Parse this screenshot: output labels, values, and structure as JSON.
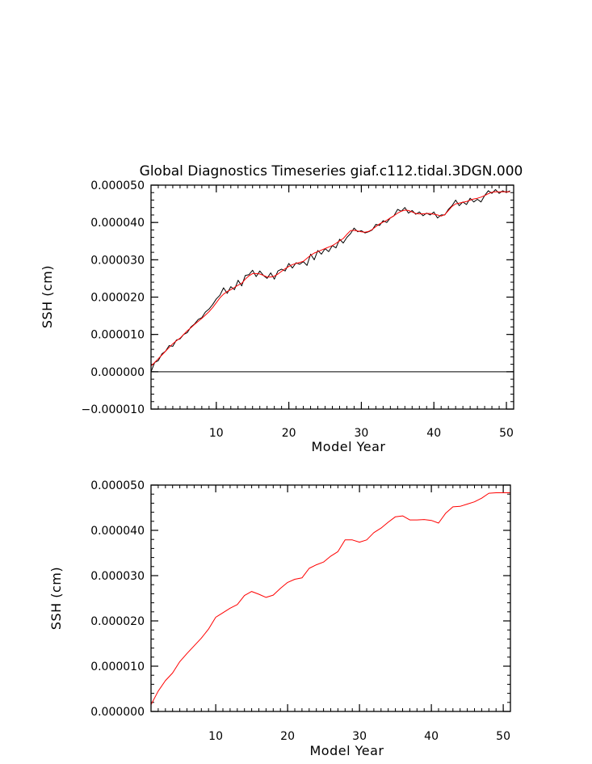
{
  "figure_title": "Global Diagnostics Timeseries giaf.c112.tidal.3DGN.000",
  "chart_data": [
    {
      "type": "line",
      "title": "Global Diagnostics Timeseries giaf.c112.tidal.3DGN.000",
      "xlabel": "Model Year",
      "ylabel": "SSH (cm)",
      "xlim": [
        1,
        51
      ],
      "ylim": [
        -1e-05,
        5e-05
      ],
      "x_ticks": [
        10,
        20,
        30,
        40,
        50
      ],
      "x_tick_labels": [
        "10",
        "20",
        "30",
        "40",
        "50"
      ],
      "y_ticks": [
        -1e-05,
        0,
        1e-05,
        2e-05,
        3e-05,
        4e-05,
        5e-05
      ],
      "y_tick_labels": [
        "−0.000010",
        "0.000000",
        "0.000010",
        "0.000020",
        "0.000030",
        "0.000040",
        "0.000050"
      ],
      "zero_line": true,
      "series": [
        {
          "color": "#000000",
          "x": [
            1.0,
            1.5,
            2.0,
            2.5,
            3.0,
            3.5,
            4.0,
            4.5,
            5.0,
            5.5,
            6.0,
            6.5,
            7.0,
            7.5,
            8.0,
            8.5,
            9.0,
            9.5,
            10.0,
            10.5,
            11.0,
            11.5,
            12.0,
            12.5,
            13.0,
            13.5,
            14.0,
            14.5,
            15.0,
            15.5,
            16.0,
            16.5,
            17.0,
            17.5,
            18.0,
            18.5,
            19.0,
            19.5,
            20.0,
            20.5,
            21.0,
            21.5,
            22.0,
            22.5,
            23.0,
            23.5,
            24.0,
            24.5,
            25.0,
            25.5,
            26.0,
            26.5,
            27.0,
            27.5,
            28.0,
            28.5,
            29.0,
            29.5,
            30.0,
            30.5,
            31.0,
            31.5,
            32.0,
            32.5,
            33.0,
            33.5,
            34.0,
            34.5,
            35.0,
            35.5,
            36.0,
            36.5,
            37.0,
            37.5,
            38.0,
            38.5,
            39.0,
            39.5,
            40.0,
            40.5,
            41.0,
            41.5,
            42.0,
            42.5,
            43.0,
            43.5,
            44.0,
            44.5,
            45.0,
            45.5,
            46.0,
            46.5,
            47.0,
            47.5,
            48.0,
            48.5,
            49.0,
            49.5,
            50.0,
            50.5
          ],
          "values": [
            0.0,
            2.5e-06,
            3e-06,
            4.8e-06,
            5.5e-06,
            7e-06,
            6.8e-06,
            8.5e-06,
            8.8e-06,
            1e-05,
            1.05e-05,
            1.2e-05,
            1.28e-05,
            1.4e-05,
            1.45e-05,
            1.6e-05,
            1.68e-05,
            1.8e-05,
            1.95e-05,
            2.05e-05,
            2.25e-05,
            2.1e-05,
            2.28e-05,
            2.2e-05,
            2.45e-05,
            2.3e-05,
            2.58e-05,
            2.6e-05,
            2.72e-05,
            2.55e-05,
            2.7e-05,
            2.58e-05,
            2.5e-05,
            2.65e-05,
            2.48e-05,
            2.7e-05,
            2.75e-05,
            2.7e-05,
            2.9e-05,
            2.78e-05,
            2.92e-05,
            2.88e-05,
            2.95e-05,
            2.85e-05,
            3.15e-05,
            3e-05,
            3.25e-05,
            3.15e-05,
            3.3e-05,
            3.22e-05,
            3.38e-05,
            3.32e-05,
            3.55e-05,
            3.45e-05,
            3.6e-05,
            3.7e-05,
            3.85e-05,
            3.75e-05,
            3.78e-05,
            3.72e-05,
            3.75e-05,
            3.8e-05,
            3.95e-05,
            3.92e-05,
            4.05e-05,
            4e-05,
            4.12e-05,
            4.18e-05,
            4.35e-05,
            4.3e-05,
            4.4e-05,
            4.25e-05,
            4.32e-05,
            4.22e-05,
            4.28e-05,
            4.18e-05,
            4.25e-05,
            4.2e-05,
            4.28e-05,
            4.12e-05,
            4.2e-05,
            4.2e-05,
            4.35e-05,
            4.45e-05,
            4.6e-05,
            4.45e-05,
            4.55e-05,
            4.48e-05,
            4.65e-05,
            4.55e-05,
            4.62e-05,
            4.55e-05,
            4.72e-05,
            4.85e-05,
            4.78e-05,
            4.88e-05,
            4.78e-05,
            4.85e-05,
            4.8e-05,
            4.85e-05
          ]
        },
        {
          "color": "#ff0000",
          "x": [
            1.0,
            1.5,
            2.0,
            2.5,
            3.0,
            3.5,
            4.0,
            4.5,
            5.0,
            5.5,
            6.0,
            6.5,
            7.0,
            7.5,
            8.0,
            8.5,
            9.0,
            9.5,
            10.0,
            10.5,
            11.0,
            11.5,
            12.0,
            12.5,
            13.0,
            13.5,
            14.0,
            14.5,
            15.0,
            15.5,
            16.0,
            16.5,
            17.0,
            17.5,
            18.0,
            18.5,
            19.0,
            19.5,
            20.0,
            20.5,
            21.0,
            21.5,
            22.0,
            22.5,
            23.0,
            23.5,
            24.0,
            24.5,
            25.0,
            25.5,
            26.0,
            26.5,
            27.0,
            27.5,
            28.0,
            28.5,
            29.0,
            29.5,
            30.0,
            30.5,
            31.0,
            31.5,
            32.0,
            32.5,
            33.0,
            33.5,
            34.0,
            34.5,
            35.0,
            35.5,
            36.0,
            36.5,
            37.0,
            37.5,
            38.0,
            38.5,
            39.0,
            39.5,
            40.0,
            40.5,
            41.0,
            41.5,
            42.0,
            42.5,
            43.0,
            43.5,
            44.0,
            44.5,
            45.0,
            45.5,
            46.0,
            46.5,
            47.0,
            47.5,
            48.0,
            48.5,
            49.0,
            49.5,
            50.0,
            50.5
          ],
          "values": [
            1.5e-06,
            2.5e-06,
            3.5e-06,
            4.5e-06,
            5.5e-06,
            6.5e-06,
            7.5e-06,
            8.3e-06,
            9e-06,
            1e-05,
            1.1e-05,
            1.18e-05,
            1.27e-05,
            1.35e-05,
            1.43e-05,
            1.52e-05,
            1.61e-05,
            1.72e-05,
            1.85e-05,
            1.98e-05,
            2.08e-05,
            2.15e-05,
            2.2e-05,
            2.26e-05,
            2.32e-05,
            2.37e-05,
            2.48e-05,
            2.57e-05,
            2.63e-05,
            2.63e-05,
            2.62e-05,
            2.58e-05,
            2.54e-05,
            2.54e-05,
            2.56e-05,
            2.62e-05,
            2.69e-05,
            2.76e-05,
            2.82e-05,
            2.87e-05,
            2.9e-05,
            2.93e-05,
            2.96e-05,
            3.04e-05,
            3.12e-05,
            3.18e-05,
            3.22e-05,
            3.26e-05,
            3.3e-05,
            3.34e-05,
            3.38e-05,
            3.44e-05,
            3.51e-05,
            3.57e-05,
            3.68e-05,
            3.78e-05,
            3.79e-05,
            3.77e-05,
            3.75e-05,
            3.74e-05,
            3.76e-05,
            3.81e-05,
            3.89e-05,
            3.96e-05,
            4.01e-05,
            4.06e-05,
            4.12e-05,
            4.18e-05,
            4.25e-05,
            4.3e-05,
            4.33e-05,
            4.32e-05,
            4.28e-05,
            4.24e-05,
            4.23e-05,
            4.23e-05,
            4.24e-05,
            4.24e-05,
            4.22e-05,
            4.2e-05,
            4.17e-05,
            4.21e-05,
            4.32e-05,
            4.43e-05,
            4.5e-05,
            4.52e-05,
            4.54e-05,
            4.56e-05,
            4.6e-05,
            4.63e-05,
            4.65e-05,
            4.68e-05,
            4.72e-05,
            4.77e-05,
            4.81e-05,
            4.82e-05,
            4.82e-05,
            4.82e-05,
            4.82e-05,
            4.82e-05
          ]
        }
      ]
    },
    {
      "type": "line",
      "title": "",
      "xlabel": "Model Year",
      "ylabel": "SSH (cm)",
      "xlim": [
        1,
        51
      ],
      "ylim": [
        0,
        5e-05
      ],
      "x_ticks": [
        10,
        20,
        30,
        40,
        50
      ],
      "x_tick_labels": [
        "10",
        "20",
        "30",
        "40",
        "50"
      ],
      "y_ticks": [
        0,
        1e-05,
        2e-05,
        3e-05,
        4e-05,
        5e-05
      ],
      "y_tick_labels": [
        "0.000000",
        "0.000010",
        "0.000020",
        "0.000030",
        "0.000040",
        "0.000050"
      ],
      "zero_line": false,
      "series": [
        {
          "color": "#ff0000",
          "x": [
            1,
            2,
            3,
            4,
            5,
            6,
            7,
            8,
            9,
            10,
            11,
            12,
            13,
            14,
            15,
            16,
            17,
            18,
            19,
            20,
            21,
            22,
            23,
            24,
            25,
            26,
            27,
            28,
            29,
            30,
            31,
            32,
            33,
            34,
            35,
            36,
            37,
            38,
            39,
            40,
            41,
            42,
            43,
            44,
            45,
            46,
            47,
            48,
            49,
            50,
            51
          ],
          "values": [
            1.5e-06,
            4.5e-06,
            6.8e-06,
            8.5e-06,
            1.1e-05,
            1.28e-05,
            1.45e-05,
            1.62e-05,
            1.82e-05,
            2.08e-05,
            2.18e-05,
            2.28e-05,
            2.36e-05,
            2.56e-05,
            2.65e-05,
            2.59e-05,
            2.52e-05,
            2.57e-05,
            2.72e-05,
            2.85e-05,
            2.92e-05,
            2.95e-05,
            3.16e-05,
            3.24e-05,
            3.3e-05,
            3.43e-05,
            3.53e-05,
            3.79e-05,
            3.79e-05,
            3.74e-05,
            3.79e-05,
            3.95e-05,
            4.05e-05,
            4.18e-05,
            4.3e-05,
            4.32e-05,
            4.23e-05,
            4.23e-05,
            4.24e-05,
            4.22e-05,
            4.16e-05,
            4.38e-05,
            4.52e-05,
            4.53e-05,
            4.58e-05,
            4.63e-05,
            4.71e-05,
            4.82e-05,
            4.83e-05,
            4.83e-05,
            4.83e-05
          ]
        }
      ]
    }
  ]
}
